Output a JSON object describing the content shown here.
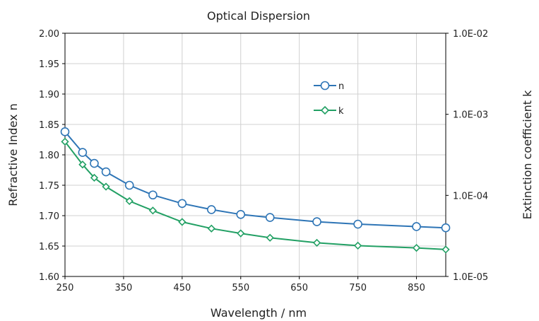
{
  "chart_data": {
    "type": "line",
    "title": "Optical Dispersion",
    "xlabel": "Wavelength / nm",
    "ylabel": "Refractive Index n",
    "y2label": "Extinction coefficient k",
    "xlim": [
      250,
      900
    ],
    "ylim": [
      1.6,
      2.0
    ],
    "y2lim": [
      1e-05,
      0.01
    ],
    "y2scale": "log",
    "x_ticks": [
      "250",
      "350",
      "450",
      "550",
      "650",
      "750",
      "850"
    ],
    "y_ticks": [
      "1.60",
      "1.65",
      "1.70",
      "1.75",
      "1.80",
      "1.85",
      "1.90",
      "1.95",
      "2.00"
    ],
    "y2_ticks": [
      "1.0E-05",
      "1.0E-04",
      "1.0E-03",
      "1.0E-02"
    ],
    "grid": true,
    "legend_position": "upper-right inside plot",
    "series": [
      {
        "name": "n",
        "axis": "left",
        "color": "#2e75b6",
        "marker": "circle",
        "x": [
          250,
          280,
          300,
          320,
          360,
          400,
          450,
          500,
          550,
          600,
          680,
          750,
          850,
          900
        ],
        "y": [
          1.838,
          1.804,
          1.786,
          1.772,
          1.75,
          1.734,
          1.72,
          1.71,
          1.702,
          1.697,
          1.69,
          1.686,
          1.682,
          1.68
        ]
      },
      {
        "name": "k",
        "axis": "right",
        "color": "#22a064",
        "marker": "diamond",
        "x": [
          250,
          280,
          300,
          320,
          360,
          400,
          450,
          500,
          550,
          600,
          680,
          750,
          850,
          900
        ],
        "y": [
          0.00046,
          0.00024,
          0.000165,
          0.000128,
          8.5e-05,
          6.5e-05,
          4.7e-05,
          3.9e-05,
          3.4e-05,
          3e-05,
          2.6e-05,
          2.4e-05,
          2.25e-05,
          2.15e-05
        ]
      }
    ]
  }
}
